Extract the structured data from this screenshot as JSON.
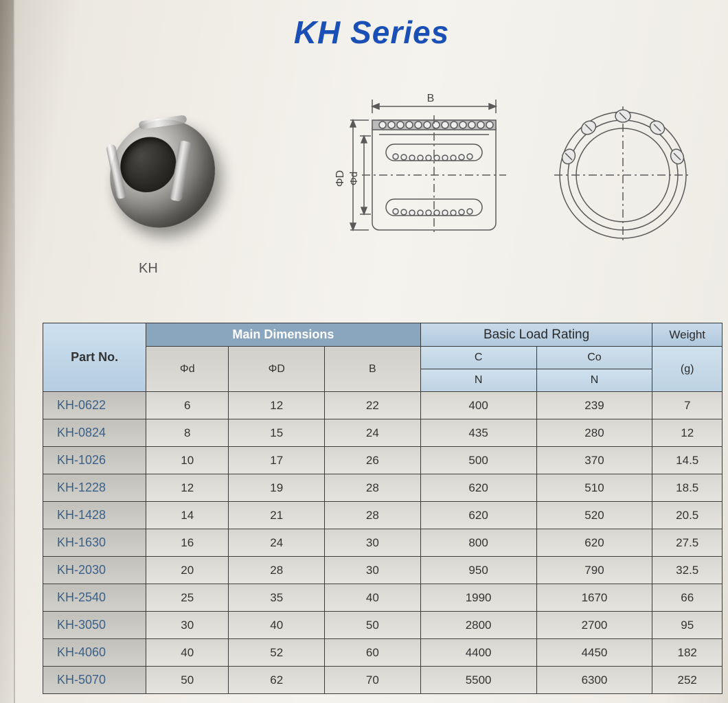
{
  "title": "KH Series",
  "product_label": "KH",
  "diagram_labels": {
    "width": "B",
    "outer_dia": "ΦD",
    "inner_dia": "Φd"
  },
  "table": {
    "headers": {
      "part_no": "Part No.",
      "main_dim": "Main Dimensions",
      "dim_d": "Φd",
      "dim_D": "ΦD",
      "dim_B": "B",
      "load": "Basic Load Rating",
      "c": "C",
      "co": "Co",
      "n": "N",
      "weight": "Weight",
      "weight_unit": "(g)"
    },
    "col_widths": {
      "part": 150,
      "d": 120,
      "D": 140,
      "B": 140,
      "C": 170,
      "Co": 170,
      "W": 100
    },
    "header_bg_blue": "#c0d6e8",
    "header_bg_main": "#8aa5be",
    "row_bg": "#dcdad4",
    "border_color": "#3a3a3a",
    "text_color": "#333333",
    "part_text_color": "#3a6088",
    "rows": [
      {
        "part": "KH-0622",
        "d": "6",
        "D": "12",
        "B": "22",
        "C": "400",
        "Co": "239",
        "W": "7"
      },
      {
        "part": "KH-0824",
        "d": "8",
        "D": "15",
        "B": "24",
        "C": "435",
        "Co": "280",
        "W": "12"
      },
      {
        "part": "KH-1026",
        "d": "10",
        "D": "17",
        "B": "26",
        "C": "500",
        "Co": "370",
        "W": "14.5"
      },
      {
        "part": "KH-1228",
        "d": "12",
        "D": "19",
        "B": "28",
        "C": "620",
        "Co": "510",
        "W": "18.5"
      },
      {
        "part": "KH-1428",
        "d": "14",
        "D": "21",
        "B": "28",
        "C": "620",
        "Co": "520",
        "W": "20.5"
      },
      {
        "part": "KH-1630",
        "d": "16",
        "D": "24",
        "B": "30",
        "C": "800",
        "Co": "620",
        "W": "27.5"
      },
      {
        "part": "KH-2030",
        "d": "20",
        "D": "28",
        "B": "30",
        "C": "950",
        "Co": "790",
        "W": "32.5"
      },
      {
        "part": "KH-2540",
        "d": "25",
        "D": "35",
        "B": "40",
        "C": "1990",
        "Co": "1670",
        "W": "66"
      },
      {
        "part": "KH-3050",
        "d": "30",
        "D": "40",
        "B": "50",
        "C": "2800",
        "Co": "2700",
        "W": "95"
      },
      {
        "part": "KH-4060",
        "d": "40",
        "D": "52",
        "B": "60",
        "C": "4400",
        "Co": "4450",
        "W": "182"
      },
      {
        "part": "KH-5070",
        "d": "50",
        "D": "62",
        "B": "70",
        "C": "5500",
        "Co": "6300",
        "W": "252"
      }
    ]
  },
  "colors": {
    "title": "#1a4fb5",
    "diagram_stroke": "#5a5a5a",
    "page_bg": "#f0eee8"
  }
}
